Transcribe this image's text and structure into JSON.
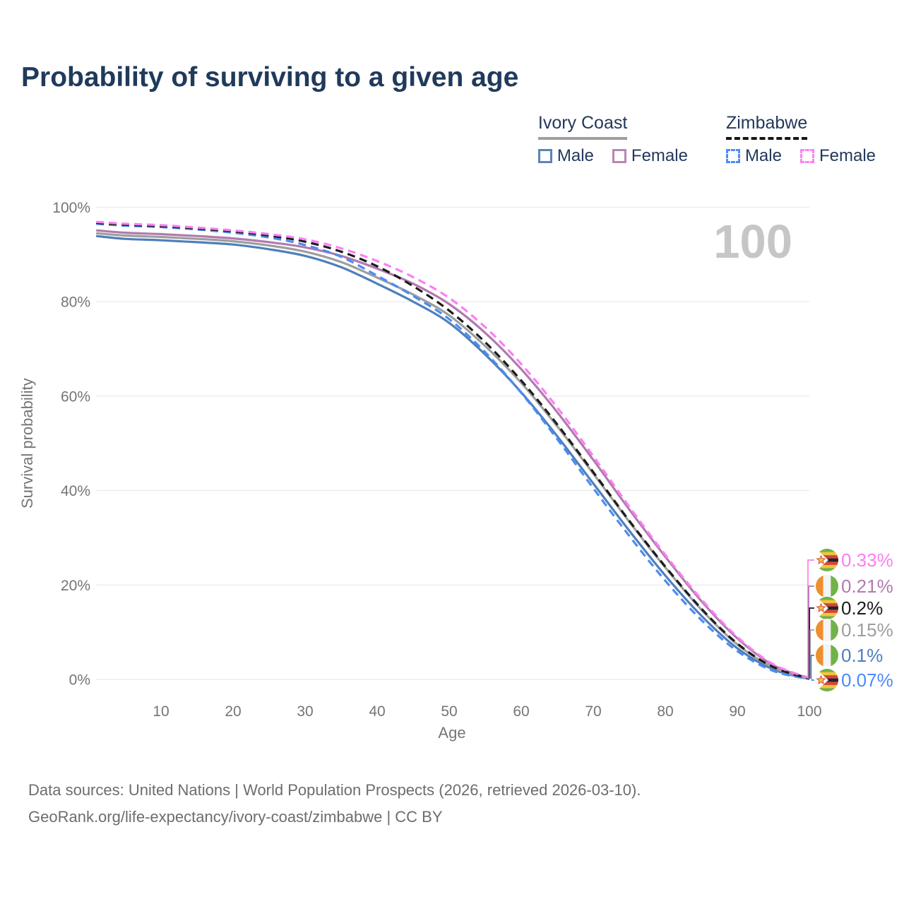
{
  "title": "Probability of surviving to a given age",
  "hover_age_indicator": "100",
  "legend": {
    "groups": [
      {
        "label": "Ivory Coast",
        "line_style": "solid",
        "line_color": "#9e9e9e",
        "items": [
          {
            "label": "Male",
            "color": "#5b84b8",
            "dashed": false
          },
          {
            "label": "Female",
            "color": "#b886b4",
            "dashed": false
          }
        ]
      },
      {
        "label": "Zimbabwe",
        "line_style": "dashed",
        "line_color": "#161616",
        "items": [
          {
            "label": "Male",
            "color": "#4d8cf8",
            "dashed": true
          },
          {
            "label": "Female",
            "color": "#fb83f1",
            "dashed": true
          }
        ]
      }
    ]
  },
  "chart_data": {
    "type": "line",
    "title": "Probability of surviving to a given age",
    "xlabel": "Age",
    "ylabel": "Survival probability",
    "xlim": [
      0,
      100
    ],
    "ylim": [
      0,
      100
    ],
    "grid": "horizontal-only",
    "legend_position": "top-right",
    "x_ticks": [
      10,
      20,
      30,
      40,
      50,
      60,
      70,
      80,
      90,
      100
    ],
    "y_ticks": [
      {
        "value": 100,
        "label": "100%"
      },
      {
        "value": 80,
        "label": "80%"
      },
      {
        "value": 60,
        "label": "60%"
      },
      {
        "value": 40,
        "label": "40%"
      },
      {
        "value": 20,
        "label": "20%"
      },
      {
        "value": 0,
        "label": "0%"
      }
    ],
    "ages": [
      1,
      5,
      10,
      15,
      20,
      25,
      30,
      35,
      40,
      45,
      50,
      55,
      60,
      65,
      70,
      75,
      80,
      85,
      90,
      95,
      100
    ],
    "series": [
      {
        "name": "Zimbabwe Female",
        "country": "zimbabwe",
        "sex": "Female",
        "color": "#fb7ff0",
        "dashed": true,
        "end_label": "0.33%",
        "values": [
          96.9,
          96.5,
          96.2,
          95.7,
          95.1,
          94.3,
          93.2,
          91.3,
          88.6,
          85.2,
          80.8,
          74.6,
          66.8,
          57.6,
          47.3,
          36.6,
          26.4,
          17.0,
          9.0,
          3.2,
          0.33
        ]
      },
      {
        "name": "Ivory Coast Female",
        "country": "ivory-coast",
        "sex": "Female",
        "color": "#b17ab0",
        "dashed": false,
        "end_label": "0.21%",
        "values": [
          95.1,
          94.6,
          94.3,
          93.9,
          93.4,
          92.6,
          91.5,
          89.7,
          87.0,
          83.8,
          79.5,
          73.4,
          65.7,
          56.6,
          46.5,
          36.0,
          26.0,
          16.6,
          8.7,
          3.0,
          0.21
        ]
      },
      {
        "name": "Zimbabwe Both sexes",
        "country": "zimbabwe",
        "sex": "Both",
        "color": "#1c1c1c",
        "dashed": true,
        "end_label": "0.2%",
        "values": [
          96.7,
          96.3,
          96.0,
          95.5,
          94.9,
          94.0,
          92.7,
          90.6,
          87.5,
          83.3,
          78.1,
          71.4,
          63.3,
          54.0,
          43.9,
          33.6,
          23.9,
          15.0,
          7.6,
          2.6,
          0.2
        ]
      },
      {
        "name": "Ivory Coast Both sexes",
        "country": "ivory-coast",
        "sex": "Both",
        "color": "#9e9e9e",
        "dashed": false,
        "end_label": "0.15%",
        "values": [
          94.5,
          94.0,
          93.7,
          93.3,
          92.8,
          91.9,
          90.6,
          88.4,
          85.1,
          81.5,
          77.1,
          70.6,
          62.8,
          53.6,
          43.6,
          33.4,
          23.7,
          14.8,
          7.4,
          2.5,
          0.15
        ]
      },
      {
        "name": "Ivory Coast Male",
        "country": "ivory-coast",
        "sex": "Male",
        "color": "#4e7fba",
        "dashed": false,
        "end_label": "0.1%",
        "values": [
          93.9,
          93.3,
          93.0,
          92.6,
          92.1,
          91.1,
          89.7,
          87.3,
          83.8,
          80.0,
          75.5,
          68.8,
          60.8,
          51.5,
          41.5,
          31.5,
          22.0,
          13.5,
          6.6,
          2.1,
          0.1
        ]
      },
      {
        "name": "Zimbabwe Male",
        "country": "zimbabwe",
        "sex": "Male",
        "color": "#4b8bf5",
        "dashed": true,
        "end_label": "0.07%",
        "values": [
          96.5,
          96.1,
          95.8,
          95.3,
          94.6,
          93.6,
          92.0,
          89.5,
          85.5,
          81.2,
          76.3,
          69.3,
          60.7,
          50.9,
          40.5,
          30.4,
          20.9,
          12.6,
          6.0,
          1.8,
          0.07
        ]
      }
    ]
  },
  "footer": {
    "line1": "Data sources: United Nations | World Population Prospects (2026, retrieved 2026-03-10).",
    "line2": "GeoRank.org/life-expectancy/ivory-coast/zimbabwe | CC BY"
  }
}
